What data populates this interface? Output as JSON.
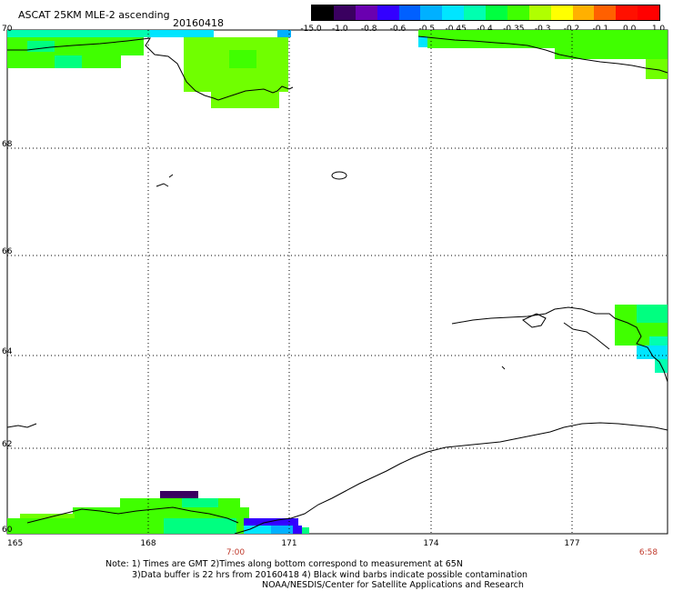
{
  "header": {
    "title": "ASCAT 25KM MLE-2 ascending",
    "date": "20160418"
  },
  "colorbar": {
    "labels": [
      "-15.0",
      "-1.0",
      "-0.8",
      "-0.6",
      "-0.5",
      "-0.45",
      "-0.4",
      "-0.35",
      "-0.3",
      "-0.2",
      "-0.1",
      "0.0",
      "1.0"
    ],
    "colors": [
      "#000000",
      "#3a0060",
      "#6a00b0",
      "#3300ff",
      "#0060ff",
      "#00b0ff",
      "#00e5ff",
      "#00ffb0",
      "#00ff40",
      "#40ff00",
      "#b0ff00",
      "#ffff00",
      "#ffb000",
      "#ff6000",
      "#ff1000",
      "#ff0000"
    ]
  },
  "axes": {
    "lat_labels": [
      "70",
      "68",
      "66",
      "64",
      "62",
      "60"
    ],
    "lon_labels": [
      "165",
      "168",
      "171",
      "174",
      "177"
    ]
  },
  "time_labels": [
    "7:00",
    "6:58"
  ],
  "notes": {
    "line1": "Note: 1) Times are GMT 2)Times along bottom correspond to measurement at 65N",
    "line2": "3)Data buffer is 22 hrs from 20160418 4) Black wind barbs indicate possible contamination",
    "line3": "NOAA/NESDIS/Center for Satellite Applications and Research"
  }
}
